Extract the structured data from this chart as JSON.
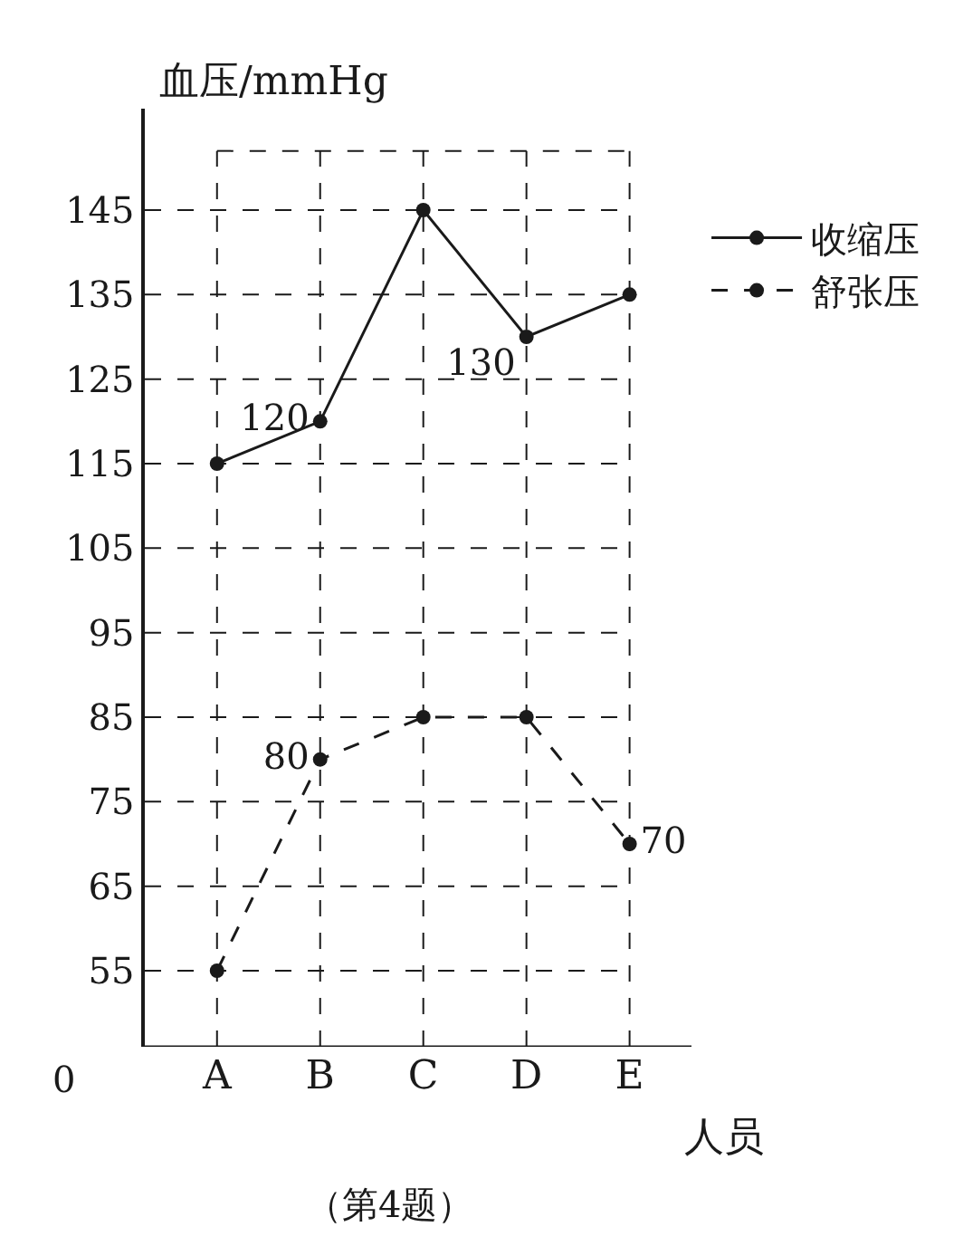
{
  "chart_data": {
    "type": "line",
    "ylabel": "血压/mmHg",
    "xlabel": "人员",
    "categories": [
      "A",
      "B",
      "C",
      "D",
      "E"
    ],
    "series": [
      {
        "name": "收缩压",
        "color": "#1a1a1a",
        "values": [
          115,
          120,
          145,
          130,
          135
        ],
        "line_style": "solid",
        "value_labels": [
          null,
          "120",
          null,
          "130",
          null
        ]
      },
      {
        "name": "舒张压",
        "color": "#1a1a1a",
        "values": [
          55,
          80,
          85,
          85,
          70
        ],
        "line_style": "dashed",
        "value_labels": [
          null,
          "80",
          null,
          null,
          "70"
        ]
      }
    ],
    "ylim": [
      46,
      157
    ],
    "yticks": [
      55,
      65,
      75,
      85,
      95,
      105,
      115,
      125,
      135,
      145
    ],
    "grid": true,
    "legend": "right",
    "marker": "circle",
    "annotations": [
      "0",
      "（第4题）"
    ]
  }
}
